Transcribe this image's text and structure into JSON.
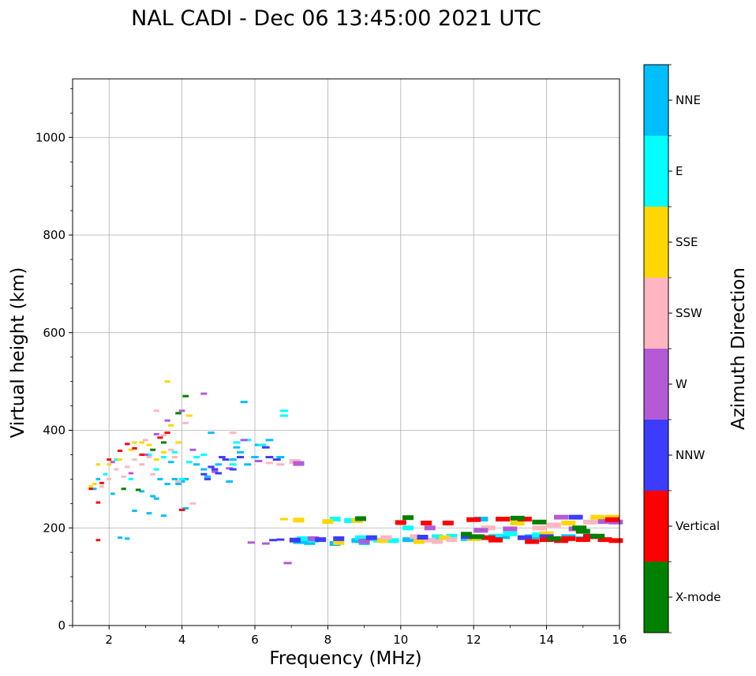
{
  "chart_data": {
    "type": "scatter",
    "title": "NAL CADI - Dec 06 13:45:00 2021 UTC",
    "xlabel": "Frequency (MHz)",
    "ylabel": "Virtual height (km)",
    "xlim": [
      1,
      16
    ],
    "ylim": [
      0,
      1120
    ],
    "xticks": [
      2,
      4,
      6,
      8,
      10,
      12,
      14,
      16
    ],
    "yticks": [
      0,
      200,
      400,
      600,
      800,
      1000
    ],
    "grid": true,
    "colorbar": {
      "label": "Azimuth Direction",
      "categories": [
        {
          "name": "X-mode",
          "color": "#008000"
        },
        {
          "name": "Vertical",
          "color": "#ff0000"
        },
        {
          "name": "NNW",
          "color": "#3c3cff"
        },
        {
          "name": "W",
          "color": "#b45ad7"
        },
        {
          "name": "SSW",
          "color": "#ffb6c1"
        },
        {
          "name": "SSE",
          "color": "#ffd700"
        },
        {
          "name": "E",
          "color": "#00ffff"
        },
        {
          "name": "NNE",
          "color": "#00bfff"
        }
      ]
    },
    "series": [
      {
        "name": "NNE",
        "points": [
          [
            1.6,
            280
          ],
          [
            1.7,
            300
          ],
          [
            2.1,
            270
          ],
          [
            2.3,
            180
          ],
          [
            2.5,
            178
          ],
          [
            2.7,
            235
          ],
          [
            2.9,
            275
          ],
          [
            3.1,
            230
          ],
          [
            3.2,
            265
          ],
          [
            3.3,
            260
          ],
          [
            3.4,
            300
          ],
          [
            3.5,
            225
          ],
          [
            3.6,
            290
          ],
          [
            3.7,
            335
          ],
          [
            3.8,
            300
          ],
          [
            3.9,
            290
          ],
          [
            4.0,
            295
          ],
          [
            4.1,
            300
          ],
          [
            4.1,
            240
          ],
          [
            4.4,
            330
          ],
          [
            4.6,
            320
          ],
          [
            4.7,
            305
          ],
          [
            4.8,
            395
          ],
          [
            5.0,
            330
          ],
          [
            5.3,
            295
          ],
          [
            5.4,
            340
          ],
          [
            5.5,
            365
          ],
          [
            5.6,
            355
          ],
          [
            5.7,
            458
          ],
          [
            5.8,
            330
          ],
          [
            6.0,
            345
          ],
          [
            6.1,
            370
          ],
          [
            6.4,
            380
          ],
          [
            6.7,
            345
          ],
          [
            7.2,
            172
          ],
          [
            7.5,
            170
          ],
          [
            8.2,
            168
          ],
          [
            8.8,
            174
          ],
          [
            9.0,
            170
          ],
          [
            9.6,
            178
          ],
          [
            10.2,
            176
          ],
          [
            10.5,
            180
          ],
          [
            11.0,
            178
          ],
          [
            11.8,
            178
          ],
          [
            12.2,
            218
          ],
          [
            12.8,
            182
          ],
          [
            13.6,
            182
          ],
          [
            14.6,
            182
          ],
          [
            15.0,
            178
          ]
        ]
      },
      {
        "name": "E",
        "points": [
          [
            1.9,
            310
          ],
          [
            2.2,
            340
          ],
          [
            2.6,
            300
          ],
          [
            2.9,
            330
          ],
          [
            3.1,
            350
          ],
          [
            3.3,
            320
          ],
          [
            3.5,
            345
          ],
          [
            3.8,
            355
          ],
          [
            4.0,
            300
          ],
          [
            4.2,
            335
          ],
          [
            4.4,
            345
          ],
          [
            4.6,
            350
          ],
          [
            5.0,
            312
          ],
          [
            5.4,
            330
          ],
          [
            5.5,
            375
          ],
          [
            5.8,
            380
          ],
          [
            6.2,
            370
          ],
          [
            6.8,
            440
          ],
          [
            6.8,
            430
          ],
          [
            7.3,
            178
          ],
          [
            7.6,
            175
          ],
          [
            8.2,
            218
          ],
          [
            8.6,
            215
          ],
          [
            8.9,
            180
          ],
          [
            9.1,
            178
          ],
          [
            9.4,
            175
          ],
          [
            9.8,
            174
          ],
          [
            10.2,
            200
          ],
          [
            11.0,
            182
          ],
          [
            11.4,
            183
          ],
          [
            11.8,
            180
          ],
          [
            12.6,
            183
          ],
          [
            13.0,
            188
          ],
          [
            13.8,
            186
          ],
          [
            14.4,
            178
          ]
        ]
      },
      {
        "name": "SSE",
        "points": [
          [
            1.5,
            285
          ],
          [
            1.6,
            290
          ],
          [
            1.7,
            330
          ],
          [
            2.0,
            330
          ],
          [
            2.3,
            340
          ],
          [
            2.6,
            360
          ],
          [
            2.7,
            375
          ],
          [
            2.9,
            375
          ],
          [
            3.1,
            370
          ],
          [
            3.3,
            340
          ],
          [
            3.5,
            355
          ],
          [
            3.6,
            500
          ],
          [
            3.7,
            410
          ],
          [
            3.9,
            375
          ],
          [
            4.2,
            430
          ],
          [
            6.8,
            218
          ],
          [
            7.2,
            216
          ],
          [
            8.0,
            213
          ],
          [
            8.3,
            170
          ],
          [
            8.8,
            215
          ],
          [
            9.5,
            174
          ],
          [
            10.5,
            172
          ],
          [
            11.2,
            180
          ],
          [
            12.0,
            178
          ],
          [
            13.2,
            210
          ],
          [
            14.0,
            188
          ],
          [
            14.6,
            210
          ],
          [
            15.4,
            222
          ],
          [
            15.8,
            222
          ]
        ]
      },
      {
        "name": "SSW",
        "points": [
          [
            1.8,
            285
          ],
          [
            2.0,
            300
          ],
          [
            2.2,
            320
          ],
          [
            2.4,
            305
          ],
          [
            2.5,
            325
          ],
          [
            2.7,
            340
          ],
          [
            2.9,
            330
          ],
          [
            3.0,
            380
          ],
          [
            3.1,
            345
          ],
          [
            3.2,
            310
          ],
          [
            3.3,
            440
          ],
          [
            3.5,
            390
          ],
          [
            3.7,
            360
          ],
          [
            3.8,
            345
          ],
          [
            3.9,
            295
          ],
          [
            4.1,
            415
          ],
          [
            4.3,
            250
          ],
          [
            5.4,
            395
          ],
          [
            6.4,
            333
          ],
          [
            6.7,
            330
          ],
          [
            7.1,
            336
          ],
          [
            9.6,
            180
          ],
          [
            10.4,
            182
          ],
          [
            10.8,
            175
          ],
          [
            11.0,
            172
          ],
          [
            11.4,
            176
          ],
          [
            12.4,
            200
          ],
          [
            13.0,
            198
          ],
          [
            13.8,
            200
          ],
          [
            14.2,
            206
          ],
          [
            15.2,
            212
          ]
        ]
      },
      {
        "name": "W",
        "points": [
          [
            2.1,
            335
          ],
          [
            2.6,
            312
          ],
          [
            3.0,
            350
          ],
          [
            3.3,
            392
          ],
          [
            3.6,
            420
          ],
          [
            4.0,
            440
          ],
          [
            4.3,
            360
          ],
          [
            4.6,
            475
          ],
          [
            4.9,
            315
          ],
          [
            5.3,
            322
          ],
          [
            5.7,
            380
          ],
          [
            5.9,
            170
          ],
          [
            6.1,
            337
          ],
          [
            6.3,
            168
          ],
          [
            6.9,
            128
          ],
          [
            7.2,
            332
          ],
          [
            7.6,
            178
          ],
          [
            9.0,
            173
          ],
          [
            10.8,
            200
          ],
          [
            12.2,
            195
          ],
          [
            13.0,
            198
          ],
          [
            14.4,
            222
          ],
          [
            14.8,
            198
          ],
          [
            15.6,
            213
          ],
          [
            15.9,
            212
          ]
        ]
      },
      {
        "name": "NNW",
        "points": [
          [
            4.6,
            310
          ],
          [
            4.7,
            300
          ],
          [
            4.8,
            325
          ],
          [
            4.9,
            320
          ],
          [
            5.0,
            312
          ],
          [
            5.1,
            345
          ],
          [
            5.2,
            340
          ],
          [
            5.4,
            320
          ],
          [
            5.6,
            345
          ],
          [
            6.3,
            365
          ],
          [
            6.4,
            345
          ],
          [
            6.6,
            340
          ],
          [
            6.5,
            175
          ],
          [
            6.7,
            176
          ],
          [
            7.1,
            175
          ],
          [
            7.8,
            176
          ],
          [
            8.3,
            178
          ],
          [
            9.2,
            180
          ],
          [
            10.6,
            181
          ],
          [
            11.8,
            182
          ],
          [
            12.6,
            176
          ],
          [
            13.4,
            180
          ],
          [
            14.0,
            182
          ],
          [
            14.8,
            222
          ],
          [
            15.2,
            183
          ]
        ]
      },
      {
        "name": "Vertical",
        "points": [
          [
            1.5,
            280
          ],
          [
            1.7,
            252
          ],
          [
            1.8,
            292
          ],
          [
            2.0,
            340
          ],
          [
            2.3,
            358
          ],
          [
            2.5,
            372
          ],
          [
            2.7,
            363
          ],
          [
            2.9,
            350
          ],
          [
            3.4,
            385
          ],
          [
            3.6,
            395
          ],
          [
            4.0,
            237
          ],
          [
            1.7,
            175
          ],
          [
            10.0,
            211
          ],
          [
            10.7,
            210
          ],
          [
            11.3,
            210
          ],
          [
            12.0,
            217
          ],
          [
            12.4,
            180
          ],
          [
            12.6,
            175
          ],
          [
            12.8,
            218
          ],
          [
            13.4,
            218
          ],
          [
            13.6,
            172
          ],
          [
            14.0,
            176
          ],
          [
            14.4,
            174
          ],
          [
            14.6,
            178
          ],
          [
            15.0,
            176
          ],
          [
            15.2,
            182
          ],
          [
            15.6,
            176
          ],
          [
            15.9,
            174
          ],
          [
            15.8,
            217
          ]
        ]
      },
      {
        "name": "X-mode",
        "points": [
          [
            2.4,
            280
          ],
          [
            2.8,
            278
          ],
          [
            3.2,
            360
          ],
          [
            3.5,
            375
          ],
          [
            3.9,
            435
          ],
          [
            4.1,
            470
          ],
          [
            8.9,
            219
          ],
          [
            10.2,
            221
          ],
          [
            11.8,
            187
          ],
          [
            12.1,
            182
          ],
          [
            13.2,
            220
          ],
          [
            13.8,
            212
          ],
          [
            14.2,
            178
          ],
          [
            14.9,
            200
          ],
          [
            15.0,
            193
          ],
          [
            15.4,
            183
          ]
        ]
      }
    ]
  }
}
